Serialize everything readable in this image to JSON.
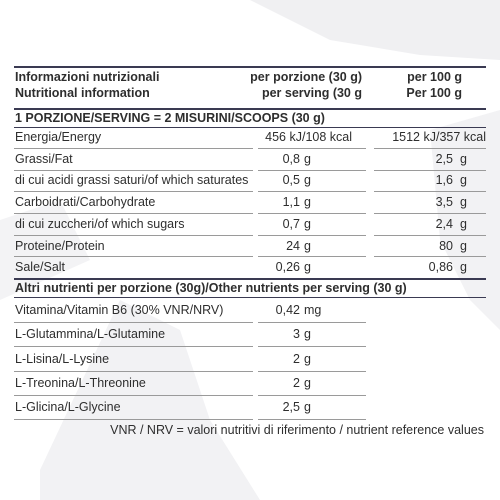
{
  "header": {
    "label": [
      "Informazioni nutrizionali",
      "Nutritional information"
    ],
    "per_serving": [
      "per porzione (30 g)",
      "per serving (30 g"
    ],
    "per_100g": [
      "per 100  g",
      "Per 100 g"
    ]
  },
  "serving_note": "1 PORZIONE/SERVING = 2 MISURINI/SCOOPS (30 g)",
  "rows": [
    {
      "label": "Energia/Energy",
      "serving": "456 kJ/108 kcal",
      "per100": "1512 kJ/357 kcal"
    },
    {
      "label": "Grassi/Fat",
      "serving": "0,8",
      "serving_unit": "g",
      "per100": "2,5",
      "per100_unit": "g"
    },
    {
      "label": "di cui acidi grassi saturi/of which saturates",
      "serving": "0,5",
      "serving_unit": "g",
      "per100": "1,6",
      "per100_unit": "g"
    },
    {
      "label": "Carboidrati/Carbohydrate",
      "serving": "1,1",
      "serving_unit": "g",
      "per100": "3,5",
      "per100_unit": "g"
    },
    {
      "label": "di cui zuccheri/of which sugars",
      "serving": "0,7",
      "serving_unit": "g",
      "per100": "2,4",
      "per100_unit": "g"
    },
    {
      "label": "Proteine/Protein",
      "serving": "24",
      "serving_unit": "g",
      "per100": "80",
      "per100_unit": "g"
    },
    {
      "label": "Sale/Salt",
      "serving": "0,26",
      "serving_unit": "g",
      "per100": "0,86",
      "per100_unit": "g"
    }
  ],
  "other_title": "Altri nutrienti per porzione (30g)/Other nutrients per serving (30 g)",
  "other_rows": [
    {
      "label": "Vitamina/Vitamin B6 (30% VNR/NRV)",
      "serving": "0,42",
      "serving_unit": "mg"
    },
    {
      "label": "L-Glutammina/L-Glutamine",
      "serving": "3",
      "serving_unit": "g"
    },
    {
      "label": "L-Lisina/L-Lysine",
      "serving": "2",
      "serving_unit": "g"
    },
    {
      "label": "L-Treonina/L-Threonine",
      "serving": "2",
      "serving_unit": "g"
    },
    {
      "label": "L-Glicina/L-Glycine",
      "serving": "2,5",
      "serving_unit": "g"
    }
  ],
  "footnote": "VNR / NRV = valori nutritivi di riferimento / nutrient reference values"
}
